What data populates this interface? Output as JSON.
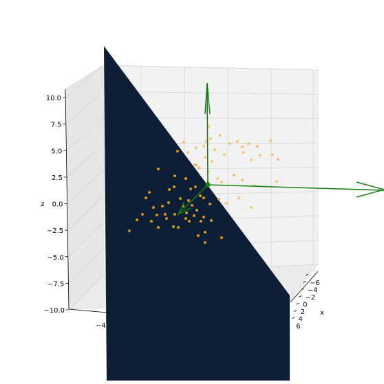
{
  "chart_data": {
    "type": "scatter",
    "projection": "3d",
    "axes": {
      "x": {
        "label": "x",
        "ticks": [
          "−6",
          "−4",
          "−2",
          "0",
          "2",
          "4",
          "6"
        ]
      },
      "y": {
        "label": "",
        "ticks": [
          "−4"
        ]
      },
      "z": {
        "label": "z",
        "ticks": [
          "10.0",
          "7.5",
          "5.0",
          "2.5",
          "0.0",
          "−2.5",
          "−5.0",
          "−7.5",
          "−10.0"
        ],
        "range": [
          -10,
          10
        ]
      }
    },
    "grid": true,
    "plane": {
      "color": "#0d1f36"
    },
    "arrows": {
      "color": "#138013",
      "count": 3,
      "origin": "center"
    },
    "points": {
      "color": "#f5a10f",
      "count": 86
    }
  }
}
